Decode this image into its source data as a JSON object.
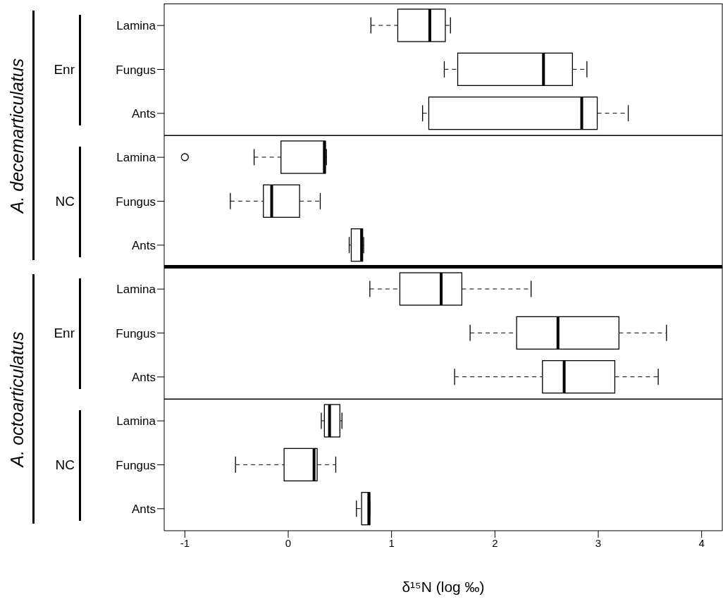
{
  "chart_data": [
    {
      "type": "box",
      "orientation": "horizontal",
      "title": "Enr",
      "ylabel": "A. decemarticulatus",
      "categories": [
        "Lamina",
        "Fungus",
        "Ants"
      ],
      "xlim": [
        -1.2,
        4.2
      ],
      "xticks": [
        -1,
        0,
        1,
        2,
        3,
        4
      ],
      "tick_labels": "y",
      "boxes": [
        {
          "low": 0.8,
          "q1": 1.06,
          "median": 1.37,
          "q3": 1.52,
          "high": 1.57
        },
        {
          "low": 1.51,
          "q1": 1.64,
          "median": 2.47,
          "q3": 2.75,
          "high": 2.89
        },
        {
          "low": 1.3,
          "q1": 1.36,
          "median": 2.84,
          "q3": 2.99,
          "high": 3.29
        }
      ]
    },
    {
      "type": "box",
      "orientation": "horizontal",
      "title": "NC",
      "categories": [
        "Lamina",
        "Fungus",
        "Ants"
      ],
      "xlim": [
        -1.2,
        4.2
      ],
      "xticks": [
        -1,
        0,
        1,
        2,
        3,
        4
      ],
      "tick_labels": "y",
      "boxes": [
        {
          "low": -0.33,
          "q1": -0.07,
          "median": 0.35,
          "q3": 0.36,
          "high": 0.37,
          "outliers": [
            -1.0
          ]
        },
        {
          "low": -0.56,
          "q1": -0.24,
          "median": -0.16,
          "q3": 0.11,
          "high": 0.31
        },
        {
          "low": 0.59,
          "q1": 0.61,
          "median": 0.71,
          "q3": 0.72,
          "high": 0.73
        }
      ]
    },
    {
      "type": "box",
      "orientation": "horizontal",
      "title": "Enr",
      "ylabel": "A. octoarticulatus",
      "categories": [
        "Lamina",
        "Fungus",
        "Ants"
      ],
      "xlim": [
        -1.2,
        4.2
      ],
      "xticks": [
        -1,
        0,
        1,
        2,
        3,
        4
      ],
      "tick_labels": "y",
      "boxes": [
        {
          "low": 0.79,
          "q1": 1.08,
          "median": 1.48,
          "q3": 1.68,
          "high": 2.35
        },
        {
          "low": 1.76,
          "q1": 2.21,
          "median": 2.61,
          "q3": 3.2,
          "high": 3.66
        },
        {
          "low": 1.61,
          "q1": 2.46,
          "median": 2.67,
          "q3": 3.16,
          "high": 3.58
        }
      ]
    },
    {
      "type": "box",
      "orientation": "horizontal",
      "title": "NC",
      "categories": [
        "Lamina",
        "Fungus",
        "Ants"
      ],
      "xlim": [
        -1.2,
        4.2
      ],
      "xticks": [
        -1,
        0,
        1,
        2,
        3,
        4
      ],
      "xlabel": "δ¹⁵N (log ‰)",
      "boxes": [
        {
          "low": 0.32,
          "q1": 0.35,
          "median": 0.4,
          "q3": 0.5,
          "high": 0.52
        },
        {
          "low": -0.51,
          "q1": -0.04,
          "median": 0.25,
          "q3": 0.28,
          "high": 0.46
        },
        {
          "low": 0.66,
          "q1": 0.71,
          "median": 0.78,
          "q3": 0.79,
          "high": 0.79
        }
      ]
    }
  ]
}
